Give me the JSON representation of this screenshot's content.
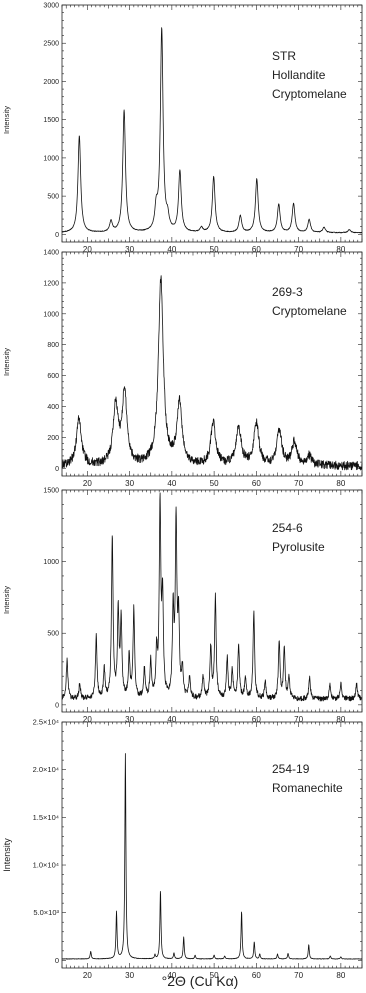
{
  "figure": {
    "xlabel": "°2Θ (Cu Kα)",
    "ylabel": "Intensity"
  },
  "colors": {
    "trace": "#111111",
    "axis": "#222222",
    "background": "#ffffff"
  },
  "chart_data": [
    {
      "type": "line",
      "labels": [
        "STR",
        "Hollandite",
        "Cryptomelane"
      ],
      "xlabel": "",
      "ylabel": "Intensity",
      "xlim": [
        14,
        85
      ],
      "ylim": [
        -100,
        3000
      ],
      "xticks": [
        20,
        30,
        40,
        50,
        60,
        70,
        80
      ],
      "xtick_labels": [
        "20",
        "30",
        "40",
        "50",
        "60",
        "70",
        "80"
      ],
      "yticks": [
        0,
        500,
        1000,
        1500,
        2000,
        2500,
        3000
      ],
      "ytick_labels": [
        "0",
        "500",
        "1000",
        "1500",
        "2000",
        "2500",
        "3000"
      ],
      "background": 20,
      "noise": 5,
      "peak_width": 0.38,
      "peaks": [
        {
          "x": 18.1,
          "y": 1270
        },
        {
          "x": 25.6,
          "y": 140
        },
        {
          "x": 28.7,
          "y": 1600
        },
        {
          "x": 36.3,
          "y": 270
        },
        {
          "x": 37.6,
          "y": 2650
        },
        {
          "x": 39.0,
          "y": 150
        },
        {
          "x": 41.9,
          "y": 800
        },
        {
          "x": 47.0,
          "y": 60
        },
        {
          "x": 49.9,
          "y": 730
        },
        {
          "x": 56.2,
          "y": 220
        },
        {
          "x": 60.1,
          "y": 700
        },
        {
          "x": 65.3,
          "y": 370
        },
        {
          "x": 68.8,
          "y": 380
        },
        {
          "x": 72.5,
          "y": 170
        },
        {
          "x": 76.0,
          "y": 70
        },
        {
          "x": 82.0,
          "y": 40
        }
      ]
    },
    {
      "type": "line",
      "labels": [
        "269-3",
        "Cryptomelane"
      ],
      "xlabel": "",
      "ylabel": "Intensity",
      "xlim": [
        14,
        85
      ],
      "ylim": [
        -50,
        1400
      ],
      "xticks": [
        20,
        30,
        40,
        50,
        60,
        70,
        80
      ],
      "xtick_labels": [
        "20",
        "30",
        "40",
        "50",
        "60",
        "70",
        "80"
      ],
      "yticks": [
        0,
        200,
        400,
        600,
        800,
        1000,
        1200,
        1400
      ],
      "ytick_labels": [
        "0",
        "200",
        "400",
        "600",
        "800",
        "1000",
        "1200",
        "1400"
      ],
      "background": 15,
      "noise": 28,
      "peak_width": 0.7,
      "peaks": [
        {
          "x": 18.0,
          "y": 300
        },
        {
          "x": 26.7,
          "y": 380
        },
        {
          "x": 28.8,
          "y": 460
        },
        {
          "x": 37.4,
          "y": 1200
        },
        {
          "x": 41.8,
          "y": 400
        },
        {
          "x": 49.8,
          "y": 270
        },
        {
          "x": 55.8,
          "y": 250
        },
        {
          "x": 60.0,
          "y": 270
        },
        {
          "x": 65.4,
          "y": 230
        },
        {
          "x": 69.0,
          "y": 150
        },
        {
          "x": 72.5,
          "y": 60
        }
      ]
    },
    {
      "type": "line",
      "labels": [
        "254-6",
        "Pyrolusite"
      ],
      "xlabel": "",
      "ylabel": "Intensity",
      "xlim": [
        14,
        85
      ],
      "ylim": [
        -50,
        1500
      ],
      "xticks": [
        20,
        30,
        40,
        50,
        60,
        70,
        80
      ],
      "xtick_labels": [
        "20",
        "30",
        "40",
        "50",
        "60",
        "70",
        "80"
      ],
      "yticks": [
        0,
        500,
        1000,
        1500
      ],
      "ytick_labels": [
        "0",
        "500",
        "1000",
        "1500"
      ],
      "background": 40,
      "noise": 18,
      "peak_width": 0.22,
      "peaks": [
        {
          "x": 15.2,
          "y": 280
        },
        {
          "x": 18.2,
          "y": 110
        },
        {
          "x": 22.1,
          "y": 430
        },
        {
          "x": 24.0,
          "y": 200
        },
        {
          "x": 25.9,
          "y": 1130
        },
        {
          "x": 27.3,
          "y": 600
        },
        {
          "x": 28.0,
          "y": 540
        },
        {
          "x": 29.9,
          "y": 300
        },
        {
          "x": 31.0,
          "y": 620
        },
        {
          "x": 33.5,
          "y": 200
        },
        {
          "x": 35.0,
          "y": 260
        },
        {
          "x": 36.4,
          "y": 300
        },
        {
          "x": 37.2,
          "y": 1320
        },
        {
          "x": 37.8,
          "y": 680
        },
        {
          "x": 40.3,
          "y": 600
        },
        {
          "x": 41.0,
          "y": 1220
        },
        {
          "x": 41.6,
          "y": 530
        },
        {
          "x": 42.5,
          "y": 200
        },
        {
          "x": 44.2,
          "y": 160
        },
        {
          "x": 47.4,
          "y": 160
        },
        {
          "x": 49.2,
          "y": 360
        },
        {
          "x": 50.3,
          "y": 710
        },
        {
          "x": 53.1,
          "y": 280
        },
        {
          "x": 54.3,
          "y": 200
        },
        {
          "x": 55.8,
          "y": 380
        },
        {
          "x": 57.4,
          "y": 150
        },
        {
          "x": 59.4,
          "y": 600
        },
        {
          "x": 62.1,
          "y": 120
        },
        {
          "x": 65.4,
          "y": 400
        },
        {
          "x": 66.6,
          "y": 360
        },
        {
          "x": 67.7,
          "y": 150
        },
        {
          "x": 72.6,
          "y": 150
        },
        {
          "x": 77.4,
          "y": 100
        },
        {
          "x": 80.0,
          "y": 110
        },
        {
          "x": 83.7,
          "y": 110
        }
      ]
    },
    {
      "type": "line",
      "labels": [
        "254-19",
        "Romanechite"
      ],
      "xlabel": "°2Θ (Cu Kα)",
      "ylabel": "Intensity",
      "xlim": [
        14,
        85
      ],
      "ylim": [
        -800,
        25000
      ],
      "xticks": [
        20,
        30,
        40,
        50,
        60,
        70,
        80
      ],
      "xtick_labels": [
        "20",
        "30",
        "40",
        "50",
        "60",
        "70",
        "80"
      ],
      "yticks": [
        0,
        5000,
        10000,
        15000,
        20000,
        25000
      ],
      "ytick_labels": [
        "0",
        "5.0×10³",
        "1.0×10⁴",
        "1.5×10⁴",
        "2.0×10⁴",
        "2.5×10⁴"
      ],
      "background": 150,
      "noise": 25,
      "peak_width": 0.15,
      "peaks": [
        {
          "x": 20.8,
          "y": 800
        },
        {
          "x": 26.9,
          "y": 4900
        },
        {
          "x": 29.0,
          "y": 21500
        },
        {
          "x": 36.0,
          "y": 400
        },
        {
          "x": 37.3,
          "y": 7200
        },
        {
          "x": 40.5,
          "y": 600
        },
        {
          "x": 42.8,
          "y": 2300
        },
        {
          "x": 45.5,
          "y": 400
        },
        {
          "x": 50.0,
          "y": 400
        },
        {
          "x": 52.5,
          "y": 300
        },
        {
          "x": 56.5,
          "y": 5000
        },
        {
          "x": 59.5,
          "y": 1800
        },
        {
          "x": 60.8,
          "y": 500
        },
        {
          "x": 65.0,
          "y": 500
        },
        {
          "x": 67.5,
          "y": 600
        },
        {
          "x": 72.4,
          "y": 1500
        },
        {
          "x": 77.5,
          "y": 300
        },
        {
          "x": 80.0,
          "y": 200
        }
      ]
    }
  ]
}
